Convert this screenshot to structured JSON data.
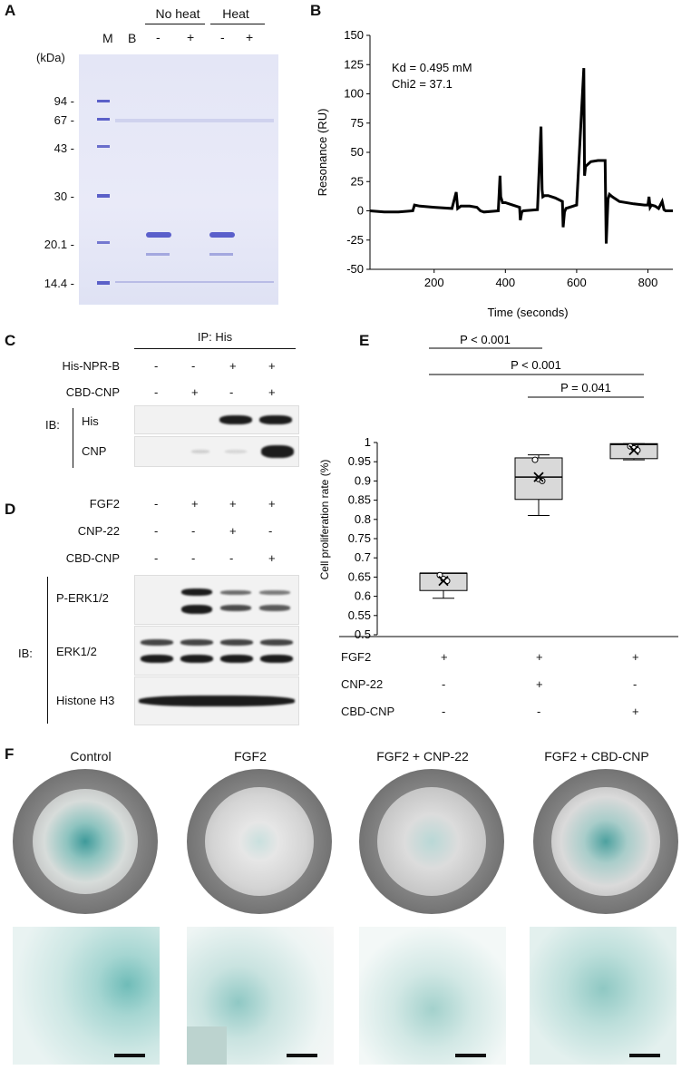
{
  "panel_labels": {
    "a": "A",
    "b": "B",
    "c": "C",
    "d": "D",
    "e": "E",
    "f": "F"
  },
  "panel_a": {
    "group_no_heat": "No heat",
    "group_heat": "Heat",
    "lane_m": "M",
    "lane_b": "B",
    "lane_signs": [
      "-",
      "+",
      "-",
      "+"
    ],
    "unit": "(kDa)",
    "markers": [
      "94 -",
      "67 -",
      "43 -",
      "30 -",
      "20.1 -",
      "14.4 -"
    ]
  },
  "panel_b": {
    "kd": "Kd = 0.495 mM",
    "chi2": "Chi2 = 37.1",
    "ylabel": "Resonance (RU)",
    "xlabel": "Time (seconds)",
    "yticks": [
      "150",
      "125",
      "100",
      "75",
      "50",
      "25",
      "0",
      "-25",
      "-50"
    ],
    "xticks": [
      "200",
      "400",
      "600",
      "800"
    ]
  },
  "panel_c": {
    "ip": "IP: His",
    "rows": [
      {
        "label": "His-NPR-B",
        "signs": [
          "-",
          "-",
          "+",
          "+"
        ]
      },
      {
        "label": "CBD-CNP",
        "signs": [
          "-",
          "+",
          "-",
          "+"
        ]
      }
    ],
    "ib": "IB:",
    "blots": [
      "His",
      "CNP"
    ]
  },
  "panel_d": {
    "rows": [
      {
        "label": "FGF2",
        "signs": [
          "-",
          "+",
          "+",
          "+"
        ]
      },
      {
        "label": "CNP-22",
        "signs": [
          "-",
          "-",
          "+",
          "-"
        ]
      },
      {
        "label": "CBD-CNP",
        "signs": [
          "-",
          "-",
          "-",
          "+"
        ]
      }
    ],
    "ib": "IB:",
    "blots": [
      "P-ERK1/2",
      "ERK1/2",
      "Histone H3"
    ]
  },
  "panel_e": {
    "p1": "P < 0.001",
    "p2": "P < 0.001",
    "p3": "P = 0.041",
    "ylabel": "Cell proliferation rate (%)",
    "conditions": [
      {
        "label": "FGF2",
        "signs": [
          "+",
          "+",
          "+"
        ]
      },
      {
        "label": "CNP-22",
        "signs": [
          "-",
          "+",
          "-"
        ]
      },
      {
        "label": "CBD-CNP",
        "signs": [
          "-",
          "-",
          "+"
        ]
      }
    ]
  },
  "panel_f": {
    "titles": [
      "Control",
      "FGF2",
      "FGF2 + CNP-22",
      "FGF2 + CBD-CNP"
    ]
  },
  "chart_data": [
    {
      "type": "line",
      "ylabel": "Resonance (RU)",
      "xlabel": "Time (seconds)",
      "xlim": [
        20,
        870
      ],
      "ylim": [
        -50,
        150
      ],
      "yticks": [
        150,
        125,
        100,
        75,
        50,
        25,
        0,
        -25,
        -50
      ],
      "xticks": [
        200,
        400,
        600,
        800
      ],
      "annotations": [
        "Kd = 0.495 mM",
        "Chi2 = 37.1"
      ],
      "series": [
        {
          "x": [
            20,
            60,
            100,
            140,
            145,
            160,
            200,
            250,
            262,
            266,
            275,
            300,
            320,
            330,
            340,
            380,
            385,
            387,
            392,
            400,
            420,
            440,
            442,
            446,
            450,
            490,
            500,
            503,
            505,
            510,
            520,
            540,
            560,
            562,
            566,
            570,
            600,
            620,
            622,
            625,
            640,
            660,
            680,
            683,
            688,
            692,
            700,
            720,
            760,
            790,
            800,
            803,
            806,
            810,
            820,
            830,
            840,
            845,
            850,
            870
          ],
          "y": [
            0,
            -1,
            -1,
            0,
            5,
            4,
            3,
            2,
            16,
            2,
            4,
            4,
            3,
            0,
            -1,
            0,
            30,
            12,
            7,
            7,
            5,
            3,
            -8,
            -1,
            0,
            1,
            72,
            18,
            12,
            13,
            13,
            11,
            8,
            -14,
            -1,
            2,
            5,
            122,
            30,
            38,
            42,
            43,
            43,
            -28,
            10,
            14,
            12,
            8,
            6,
            5,
            5,
            12,
            3,
            5,
            4,
            2,
            8,
            1,
            0,
            0
          ]
        }
      ]
    },
    {
      "type": "box",
      "ylabel": "Cell proliferation rate (%)",
      "ylim": [
        0.5,
        1
      ],
      "yticks": [
        0.5,
        0.55,
        0.6,
        0.65,
        0.7,
        0.75,
        0.8,
        0.85,
        0.9,
        0.95,
        1
      ],
      "categories": [
        "FGF2",
        "FGF2 + CNP-22",
        "FGF2 + CBD-CNP"
      ],
      "boxes": [
        {
          "min": 0.595,
          "q1": 0.615,
          "median": 0.66,
          "q3": 0.66,
          "max": 0.66,
          "mean": 0.64,
          "points": [
            0.655,
            0.645,
            0.64
          ]
        },
        {
          "min": 0.81,
          "q1": 0.852,
          "median": 0.91,
          "q3": 0.96,
          "max": 0.968,
          "mean": 0.91,
          "points": [
            0.955,
            0.905,
            0.9
          ]
        },
        {
          "min": 0.955,
          "q1": 0.958,
          "median": 0.995,
          "q3": 0.997,
          "max": 0.997,
          "mean": 0.98,
          "points": [
            0.99,
            0.985,
            0.98
          ]
        }
      ],
      "significance": [
        "P < 0.001",
        "P < 0.001",
        "P = 0.041"
      ]
    }
  ]
}
